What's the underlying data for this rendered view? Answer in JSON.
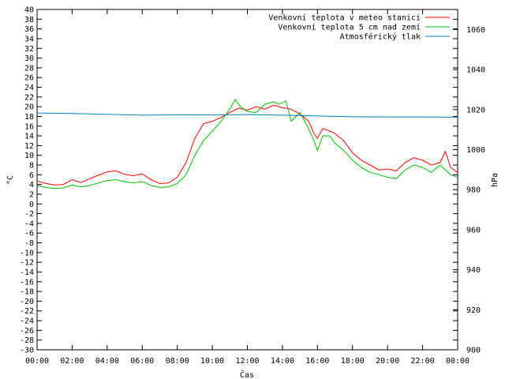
{
  "chart_data": {
    "type": "line",
    "xlabel": "Čas",
    "ylabel": "°C",
    "y2label": "hPa",
    "xlim": [
      0,
      24
    ],
    "ylim": [
      -30,
      40
    ],
    "y2lim": [
      900,
      1070
    ],
    "grid": false,
    "legend_position": "top-right",
    "x_ticks": [
      "00:00",
      "02:00",
      "04:00",
      "06:00",
      "08:00",
      "10:00",
      "12:00",
      "14:00",
      "16:00",
      "18:00",
      "20:00",
      "22:00",
      "00:00"
    ],
    "y_ticks": [
      -30,
      -28,
      -26,
      -24,
      -22,
      -20,
      -18,
      -16,
      -14,
      -12,
      -10,
      -8,
      -6,
      -4,
      -2,
      0,
      2,
      4,
      6,
      8,
      10,
      12,
      14,
      16,
      18,
      20,
      22,
      24,
      26,
      28,
      30,
      32,
      34,
      36,
      38,
      40
    ],
    "y2_ticks": [
      900,
      920,
      940,
      960,
      980,
      1000,
      1020,
      1040,
      1060
    ],
    "series": [
      {
        "name": "Venkovní teplota v meteo stanici",
        "axis": "left",
        "color": "#ff0000",
        "x": [
          0,
          0.5,
          1,
          1.5,
          2,
          2.5,
          3,
          3.5,
          4,
          4.5,
          5,
          5.5,
          6,
          6.5,
          7,
          7.5,
          8,
          8.5,
          9,
          9.5,
          10,
          10.5,
          11,
          11.5,
          12,
          12.5,
          13,
          13.5,
          14,
          14.5,
          15,
          15.5,
          15.8,
          16,
          16.3,
          16.7,
          17,
          17.5,
          18,
          18.5,
          19,
          19.5,
          20,
          20.5,
          21,
          21.5,
          22,
          22.5,
          23,
          23.3,
          23.6,
          24
        ],
        "y": [
          4.7,
          4.2,
          3.9,
          4.0,
          5.0,
          4.4,
          5.2,
          5.9,
          6.6,
          6.8,
          6.1,
          5.8,
          6.2,
          5.0,
          4.2,
          4.3,
          5.5,
          8.5,
          13.5,
          16.5,
          17.0,
          17.8,
          18.8,
          19.7,
          19.3,
          20.0,
          19.5,
          20.3,
          19.8,
          19.5,
          18.5,
          17.0,
          14.5,
          13.5,
          15.5,
          15.0,
          14.5,
          13.0,
          10.5,
          9.0,
          8.0,
          7.0,
          7.2,
          6.8,
          8.5,
          9.5,
          9.0,
          8.0,
          8.5,
          10.8,
          7.5,
          6.5
        ]
      },
      {
        "name": "Venkovní teplota 5 cm nad zemí",
        "axis": "left",
        "color": "#00c000",
        "x": [
          0,
          0.5,
          1,
          1.5,
          2,
          2.5,
          3,
          3.5,
          4,
          4.5,
          5,
          5.5,
          6,
          6.5,
          7,
          7.5,
          8,
          8.5,
          9,
          9.5,
          10,
          10.5,
          11,
          11.3,
          11.6,
          12,
          12.5,
          13,
          13.5,
          13.8,
          14.2,
          14.5,
          15,
          15.5,
          15.8,
          16,
          16.3,
          16.7,
          17,
          17.5,
          18,
          18.5,
          19,
          19.5,
          20,
          20.5,
          21,
          21.5,
          22,
          22.5,
          23,
          23.3,
          23.6,
          24
        ],
        "y": [
          3.8,
          3.4,
          3.2,
          3.3,
          3.9,
          3.5,
          3.8,
          4.3,
          4.8,
          5.0,
          4.6,
          4.3,
          4.6,
          3.8,
          3.4,
          3.5,
          4.2,
          6.0,
          10.0,
          13.0,
          15.0,
          17.0,
          19.5,
          21.5,
          20.0,
          19.0,
          18.8,
          20.5,
          21.0,
          20.5,
          21.2,
          17.0,
          18.8,
          15.5,
          13.0,
          11.0,
          14.0,
          14.0,
          12.5,
          11.0,
          9.0,
          7.5,
          6.5,
          6.0,
          5.5,
          5.2,
          7.0,
          8.0,
          7.5,
          6.5,
          8.0,
          7.0,
          6.0,
          5.5
        ]
      },
      {
        "name": "Atmosférický tlak",
        "axis": "right",
        "color": "#0080c0",
        "x": [
          0,
          2,
          4,
          6,
          8,
          10,
          12,
          14,
          16,
          18,
          20,
          22,
          24
        ],
        "y": [
          1018.3,
          1018.0,
          1017.6,
          1017.2,
          1017.4,
          1017.3,
          1017.5,
          1017.2,
          1016.8,
          1016.4,
          1016.3,
          1016.3,
          1016.2
        ]
      }
    ]
  }
}
